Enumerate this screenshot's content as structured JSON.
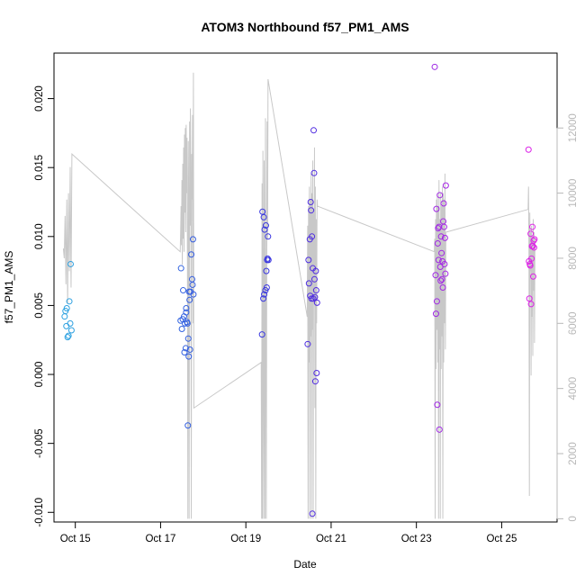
{
  "chart_data": {
    "type": "scatter",
    "title": "ATOM3 Northbound f57_PM1_AMS",
    "xlabel": "Date",
    "ylabel": "f57_PM1_AMS",
    "xlim": [
      14.5,
      26.3
    ],
    "ylim": [
      -0.0107,
      0.0233
    ],
    "y2lim": [
      -100,
      14300
    ],
    "x_ticks": [
      {
        "value": 15,
        "label": "Oct 15"
      },
      {
        "value": 17,
        "label": "Oct 17"
      },
      {
        "value": 19,
        "label": "Oct 19"
      },
      {
        "value": 21,
        "label": "Oct 21"
      },
      {
        "value": 23,
        "label": "Oct 23"
      },
      {
        "value": 25,
        "label": "Oct 25"
      }
    ],
    "y_ticks": [
      -0.01,
      -0.005,
      0.0,
      0.005,
      0.01,
      0.015,
      0.02
    ],
    "y_tick_labels": [
      "-0.010",
      "-0.005",
      "0.000",
      "0.005",
      "0.010",
      "0.015",
      "0.020"
    ],
    "y2_ticks": [
      0,
      2000,
      4000,
      6000,
      8000,
      10000,
      12000
    ],
    "y2_tick_labels": [
      "0",
      "2000",
      "4000",
      "6000",
      "8000",
      "10000",
      "12000"
    ],
    "series": [
      {
        "type": "scatter",
        "axis": "left",
        "points": [
          [
            14.75,
            0.0042
          ],
          [
            14.77,
            0.0046
          ],
          [
            14.79,
            0.0035
          ],
          [
            14.8,
            0.0048
          ],
          [
            14.82,
            0.0027
          ],
          [
            14.84,
            0.0028
          ],
          [
            14.86,
            0.0053
          ],
          [
            14.88,
            0.0037
          ],
          [
            14.89,
            0.008
          ],
          [
            14.91,
            0.0032
          ],
          [
            17.47,
            0.0039
          ],
          [
            17.48,
            0.0077
          ],
          [
            17.5,
            0.0033
          ],
          [
            17.52,
            0.004
          ],
          [
            17.53,
            0.0061
          ],
          [
            17.55,
            0.0042
          ],
          [
            17.56,
            0.0016
          ],
          [
            17.57,
            0.0037
          ],
          [
            17.59,
            0.0019
          ],
          [
            17.6,
            0.0045
          ],
          [
            17.62,
            0.0038
          ],
          [
            17.63,
            0.0037
          ],
          [
            17.64,
            -0.0037
          ],
          [
            17.65,
            0.0026
          ],
          [
            17.66,
            0.0013
          ],
          [
            17.67,
            0.006
          ],
          [
            17.68,
            0.0054
          ],
          [
            17.69,
            0.0018
          ],
          [
            17.7,
            0.006
          ],
          [
            17.72,
            0.0087
          ],
          [
            17.74,
            0.0069
          ],
          [
            17.76,
            0.0098
          ],
          [
            17.77,
            0.0058
          ],
          [
            17.75,
            0.0065
          ],
          [
            17.6,
            0.0048
          ],
          [
            19.38,
            0.0029
          ],
          [
            19.39,
            0.0118
          ],
          [
            19.41,
            0.0055
          ],
          [
            19.42,
            0.0114
          ],
          [
            19.43,
            0.0058
          ],
          [
            19.44,
            0.0105
          ],
          [
            19.46,
            0.0061
          ],
          [
            19.47,
            0.0108
          ],
          [
            19.48,
            0.0075
          ],
          [
            19.49,
            0.0063
          ],
          [
            19.5,
            0.0083
          ],
          [
            19.51,
            0.0084
          ],
          [
            19.52,
            0.01
          ],
          [
            19.53,
            0.0083
          ],
          [
            20.45,
            0.0022
          ],
          [
            20.47,
            0.0083
          ],
          [
            20.48,
            0.0066
          ],
          [
            20.5,
            0.0098
          ],
          [
            20.51,
            0.0057
          ],
          [
            20.52,
            0.0125
          ],
          [
            20.53,
            0.0119
          ],
          [
            20.54,
            0.0055
          ],
          [
            20.55,
            0.01
          ],
          [
            20.56,
            -0.0101
          ],
          [
            20.57,
            0.0077
          ],
          [
            20.58,
            0.0055
          ],
          [
            20.59,
            0.0177
          ],
          [
            20.6,
            0.0146
          ],
          [
            20.61,
            0.0069
          ],
          [
            20.62,
            0.0056
          ],
          [
            20.63,
            -0.0005
          ],
          [
            20.64,
            0.0075
          ],
          [
            20.65,
            0.0061
          ],
          [
            20.66,
            0.0001
          ],
          [
            20.67,
            0.0052
          ],
          [
            23.43,
            0.0223
          ],
          [
            23.45,
            0.0072
          ],
          [
            23.46,
            0.0044
          ],
          [
            23.47,
            0.012
          ],
          [
            23.48,
            0.0053
          ],
          [
            23.49,
            -0.0022
          ],
          [
            23.5,
            0.0095
          ],
          [
            23.51,
            0.0106
          ],
          [
            23.52,
            0.0083
          ],
          [
            23.53,
            0.0107
          ],
          [
            23.54,
            -0.004
          ],
          [
            23.55,
            0.013
          ],
          [
            23.56,
            0.0078
          ],
          [
            23.57,
            0.0068
          ],
          [
            23.58,
            0.01
          ],
          [
            23.59,
            0.0088
          ],
          [
            23.6,
            0.0069
          ],
          [
            23.61,
            0.0082
          ],
          [
            23.62,
            0.0063
          ],
          [
            23.63,
            0.0111
          ],
          [
            23.64,
            0.0124
          ],
          [
            23.65,
            0.0107
          ],
          [
            23.66,
            0.008
          ],
          [
            23.67,
            0.0099
          ],
          [
            23.68,
            0.0073
          ],
          [
            23.69,
            0.0137
          ],
          [
            25.63,
            0.0163
          ],
          [
            25.64,
            0.0082
          ],
          [
            25.65,
            0.0055
          ],
          [
            25.66,
            0.008
          ],
          [
            25.67,
            0.0079
          ],
          [
            25.68,
            0.0102
          ],
          [
            25.69,
            0.0051
          ],
          [
            25.7,
            0.0084
          ],
          [
            25.71,
            0.0093
          ],
          [
            25.72,
            0.0107
          ],
          [
            25.73,
            0.0093
          ],
          [
            25.74,
            0.0071
          ],
          [
            25.75,
            0.0097
          ],
          [
            25.76,
            0.0092
          ],
          [
            25.77,
            0.0098
          ]
        ]
      },
      {
        "type": "line",
        "axis": "right",
        "points": [
          [
            14.72,
            8300
          ],
          [
            14.74,
            8000
          ],
          [
            14.76,
            9300
          ],
          [
            14.78,
            7200
          ],
          [
            14.8,
            9800
          ],
          [
            14.82,
            6600
          ],
          [
            14.84,
            10000
          ],
          [
            14.86,
            7600
          ],
          [
            14.88,
            10800
          ],
          [
            14.9,
            7100
          ],
          [
            14.92,
            11200
          ],
          [
            17.46,
            8200
          ],
          [
            17.47,
            8800
          ],
          [
            17.48,
            9600
          ],
          [
            17.49,
            8400
          ],
          [
            17.5,
            10400
          ],
          [
            17.51,
            7800
          ],
          [
            17.52,
            10900
          ],
          [
            17.53,
            8600
          ],
          [
            17.54,
            11400
          ],
          [
            17.55,
            8200
          ],
          [
            17.56,
            11800
          ],
          [
            17.57,
            9400
          ],
          [
            17.58,
            12000
          ],
          [
            17.59,
            8800
          ],
          [
            17.6,
            12100
          ],
          [
            17.61,
            10000
          ],
          [
            17.62,
            11700
          ],
          [
            17.63,
            7800
          ],
          [
            17.64,
            0
          ],
          [
            17.65,
            11600
          ],
          [
            17.66,
            9600
          ],
          [
            17.67,
            0
          ],
          [
            17.68,
            12200
          ],
          [
            17.69,
            9000
          ],
          [
            17.7,
            12600
          ],
          [
            17.71,
            10200
          ],
          [
            17.72,
            0
          ],
          [
            17.73,
            11200
          ],
          [
            17.74,
            9800
          ],
          [
            17.75,
            12400
          ],
          [
            17.76,
            6000
          ],
          [
            17.77,
            13700
          ],
          [
            17.78,
            3400
          ],
          [
            19.36,
            4800
          ],
          [
            19.37,
            0
          ],
          [
            19.38,
            10300
          ],
          [
            19.39,
            0
          ],
          [
            19.4,
            11300
          ],
          [
            19.41,
            5600
          ],
          [
            19.42,
            0
          ],
          [
            19.43,
            11000
          ],
          [
            19.44,
            3800
          ],
          [
            19.45,
            0
          ],
          [
            19.46,
            12300
          ],
          [
            19.47,
            6200
          ],
          [
            19.48,
            0
          ],
          [
            19.49,
            7800
          ],
          [
            19.5,
            12200
          ],
          [
            19.51,
            8600
          ],
          [
            19.52,
            13500
          ],
          [
            20.44,
            6200
          ],
          [
            20.45,
            9000
          ],
          [
            20.46,
            0
          ],
          [
            20.47,
            9600
          ],
          [
            20.48,
            4800
          ],
          [
            20.49,
            10200
          ],
          [
            20.5,
            0
          ],
          [
            20.51,
            9800
          ],
          [
            20.52,
            5600
          ],
          [
            20.53,
            10600
          ],
          [
            20.54,
            0
          ],
          [
            20.55,
            10000
          ],
          [
            20.56,
            5800
          ],
          [
            20.57,
            11000
          ],
          [
            20.58,
            0
          ],
          [
            20.59,
            9400
          ],
          [
            20.6,
            6600
          ],
          [
            20.61,
            11400
          ],
          [
            20.62,
            3400
          ],
          [
            20.63,
            10200
          ],
          [
            20.64,
            0
          ],
          [
            20.65,
            9200
          ],
          [
            20.66,
            6000
          ],
          [
            20.67,
            9800
          ],
          [
            20.68,
            9600
          ],
          [
            23.42,
            8200
          ],
          [
            23.43,
            8600
          ],
          [
            23.44,
            0
          ],
          [
            23.45,
            9200
          ],
          [
            23.46,
            4600
          ],
          [
            23.47,
            9800
          ],
          [
            23.48,
            5800
          ],
          [
            23.49,
            10000
          ],
          [
            23.5,
            4800
          ],
          [
            23.51,
            9600
          ],
          [
            23.52,
            0
          ],
          [
            23.53,
            10400
          ],
          [
            23.54,
            5200
          ],
          [
            23.55,
            9200
          ],
          [
            23.56,
            0
          ],
          [
            23.57,
            10000
          ],
          [
            23.58,
            4600
          ],
          [
            23.59,
            9600
          ],
          [
            23.6,
            5600
          ],
          [
            23.61,
            10200
          ],
          [
            23.62,
            0
          ],
          [
            23.63,
            10000
          ],
          [
            23.64,
            4800
          ],
          [
            23.65,
            9800
          ],
          [
            23.66,
            6000
          ],
          [
            23.67,
            10600
          ],
          [
            23.68,
            5200
          ],
          [
            23.69,
            8800
          ],
          [
            25.62,
            9500
          ],
          [
            25.63,
            10200
          ],
          [
            25.64,
            8200
          ],
          [
            25.65,
            700
          ],
          [
            25.66,
            9400
          ],
          [
            25.67,
            7600
          ],
          [
            25.68,
            8800
          ],
          [
            25.69,
            4400
          ],
          [
            25.7,
            9000
          ],
          [
            25.71,
            6200
          ],
          [
            25.72,
            8600
          ],
          [
            25.73,
            5000
          ],
          [
            25.74,
            9200
          ],
          [
            25.75,
            7000
          ],
          [
            25.76,
            8800
          ],
          [
            25.77,
            5400
          ],
          [
            25.78,
            8600
          ]
        ]
      }
    ],
    "colors": {
      "early": "#2ba8e0",
      "mid": "#3a2ee0",
      "late": "#ee21e8",
      "secondary_line": "#c8c8c8",
      "right_axis": "#b8b8b8",
      "frame": "#000000"
    },
    "grid": false,
    "legend": "none"
  }
}
